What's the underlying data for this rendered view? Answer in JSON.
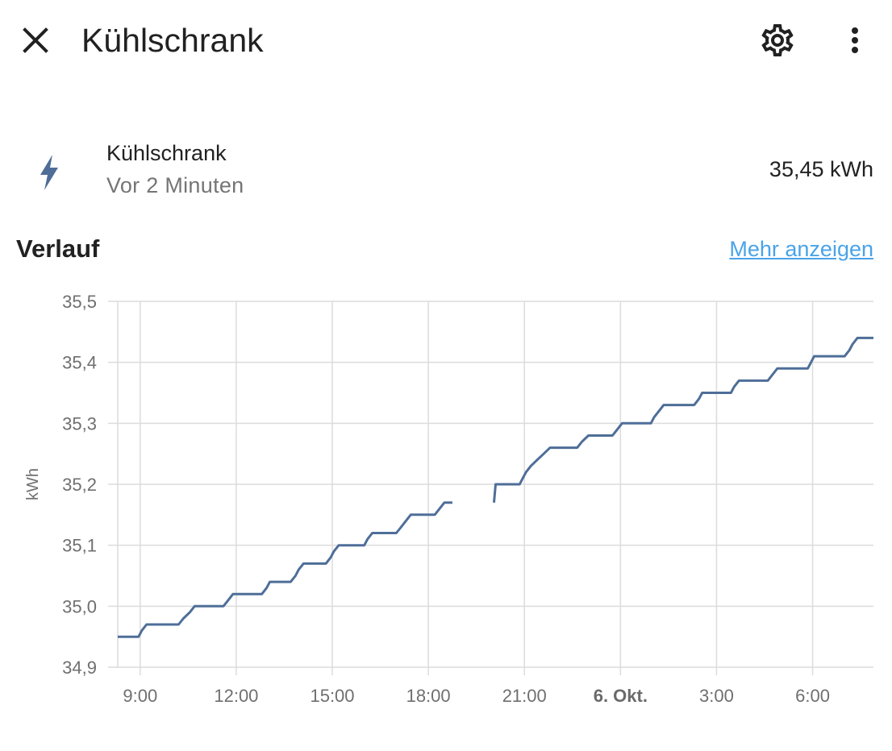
{
  "header": {
    "title": "Kühlschrank",
    "close_icon": "close-icon",
    "settings_icon": "gear-icon",
    "menu_icon": "more-vertical-icon"
  },
  "entity": {
    "icon": "lightning-bolt-icon",
    "name": "Kühlschrank",
    "last_changed": "Vor 2 Minuten",
    "state": "35,45 kWh"
  },
  "history": {
    "title": "Verlauf",
    "more_link": "Mehr anzeigen"
  },
  "colors": {
    "line": "#4e6e98",
    "grid": "#dcdcdc",
    "link": "#4aa3e8",
    "icon": "#4e6e98"
  },
  "chart_data": {
    "type": "line",
    "ylabel": "kWh",
    "ylim": [
      34.9,
      35.5
    ],
    "yticks": [
      "34,9",
      "35,0",
      "35,1",
      "35,2",
      "35,3",
      "35,4",
      "35,5"
    ],
    "xticks": [
      {
        "label": "9:00",
        "hour": 9,
        "bold": false
      },
      {
        "label": "12:00",
        "hour": 12,
        "bold": false
      },
      {
        "label": "15:00",
        "hour": 15,
        "bold": false
      },
      {
        "label": "18:00",
        "hour": 18,
        "bold": false
      },
      {
        "label": "21:00",
        "hour": 21,
        "bold": false
      },
      {
        "label": "6. Okt.",
        "hour": 24,
        "bold": true
      },
      {
        "label": "3:00",
        "hour": 27,
        "bold": false
      },
      {
        "label": "6:00",
        "hour": 30,
        "bold": false
      }
    ],
    "xlim_hours": [
      8.3,
      31.9
    ],
    "grid": true,
    "series": [
      {
        "points": [
          [
            8.3,
            34.95
          ],
          [
            8.95,
            34.95
          ],
          [
            9.05,
            34.96
          ],
          [
            9.2,
            34.97
          ],
          [
            10.2,
            34.97
          ],
          [
            10.35,
            34.98
          ],
          [
            10.55,
            34.99
          ],
          [
            10.7,
            35.0
          ],
          [
            11.6,
            35.0
          ],
          [
            11.75,
            35.01
          ],
          [
            11.9,
            35.02
          ],
          [
            12.8,
            35.02
          ],
          [
            12.95,
            35.03
          ],
          [
            13.05,
            35.04
          ],
          [
            13.7,
            35.04
          ],
          [
            13.85,
            35.05
          ],
          [
            13.95,
            35.06
          ],
          [
            14.1,
            35.07
          ],
          [
            14.8,
            35.07
          ],
          [
            14.95,
            35.08
          ],
          [
            15.05,
            35.09
          ],
          [
            15.2,
            35.1
          ],
          [
            16.0,
            35.1
          ],
          [
            16.1,
            35.11
          ],
          [
            16.25,
            35.12
          ],
          [
            17.0,
            35.12
          ],
          [
            17.15,
            35.13
          ],
          [
            17.3,
            35.14
          ],
          [
            17.45,
            35.15
          ],
          [
            18.2,
            35.15
          ],
          [
            18.35,
            35.16
          ],
          [
            18.5,
            35.17
          ],
          [
            18.75,
            35.17
          ]
        ]
      },
      {
        "points": [
          [
            20.05,
            35.17
          ],
          [
            20.1,
            35.2
          ],
          [
            20.85,
            35.2
          ],
          [
            20.95,
            35.21
          ],
          [
            21.05,
            35.22
          ],
          [
            21.2,
            35.23
          ],
          [
            21.4,
            35.24
          ],
          [
            21.6,
            35.25
          ],
          [
            21.8,
            35.26
          ],
          [
            22.65,
            35.26
          ],
          [
            22.8,
            35.27
          ],
          [
            23.0,
            35.28
          ],
          [
            23.75,
            35.28
          ],
          [
            23.9,
            35.29
          ],
          [
            24.05,
            35.3
          ],
          [
            24.95,
            35.3
          ],
          [
            25.05,
            35.31
          ],
          [
            25.2,
            35.32
          ],
          [
            25.35,
            35.33
          ],
          [
            26.3,
            35.33
          ],
          [
            26.45,
            35.34
          ],
          [
            26.55,
            35.35
          ],
          [
            27.45,
            35.35
          ],
          [
            27.55,
            35.36
          ],
          [
            27.7,
            35.37
          ],
          [
            28.6,
            35.37
          ],
          [
            28.75,
            35.38
          ],
          [
            28.9,
            35.39
          ],
          [
            29.85,
            35.39
          ],
          [
            29.95,
            35.4
          ],
          [
            30.05,
            35.41
          ],
          [
            31.0,
            35.41
          ],
          [
            31.15,
            35.42
          ],
          [
            31.25,
            35.43
          ],
          [
            31.4,
            35.44
          ],
          [
            31.9,
            35.44
          ]
        ]
      }
    ]
  }
}
